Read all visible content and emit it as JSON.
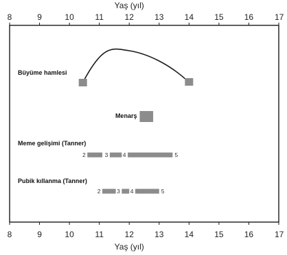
{
  "chart_data": {
    "type": "timeline",
    "title": "",
    "xlabel": "Yaş (yıl)",
    "xlim": [
      8,
      17
    ],
    "x_ticks": [
      8,
      9,
      10,
      11,
      12,
      13,
      14,
      15,
      16,
      17
    ],
    "colors": {
      "bar": "#8c8c8c",
      "curve": "#1a1a1a",
      "frame": "#1a1a1a"
    },
    "rows": [
      {
        "key": "growth",
        "label": "Büyüme hamlesi",
        "type": "curve",
        "start": 10.45,
        "end": 14.0,
        "peak": 12.0
      },
      {
        "key": "menarche",
        "label": "Menarş",
        "type": "box",
        "start": 12.35,
        "end": 12.8
      },
      {
        "key": "breast",
        "label": "Meme gelişimi (Tanner)",
        "type": "stages",
        "stages": [
          {
            "label": "2",
            "start": 10.6,
            "end": 11.1
          },
          {
            "label": "3",
            "start": 11.35,
            "end": 11.75
          },
          {
            "label": "4",
            "start": 11.95,
            "end": 13.45
          },
          {
            "label": "5",
            "start": null,
            "end": null
          }
        ]
      },
      {
        "key": "pubic",
        "label": "Pubik kıllanma (Tanner)",
        "type": "stages",
        "stages": [
          {
            "label": "2",
            "start": 11.1,
            "end": 11.55
          },
          {
            "label": "3",
            "start": 11.75,
            "end": 12.0
          },
          {
            "label": "4",
            "start": 12.2,
            "end": 13.0
          },
          {
            "label": "5",
            "start": null,
            "end": null
          }
        ]
      }
    ]
  }
}
